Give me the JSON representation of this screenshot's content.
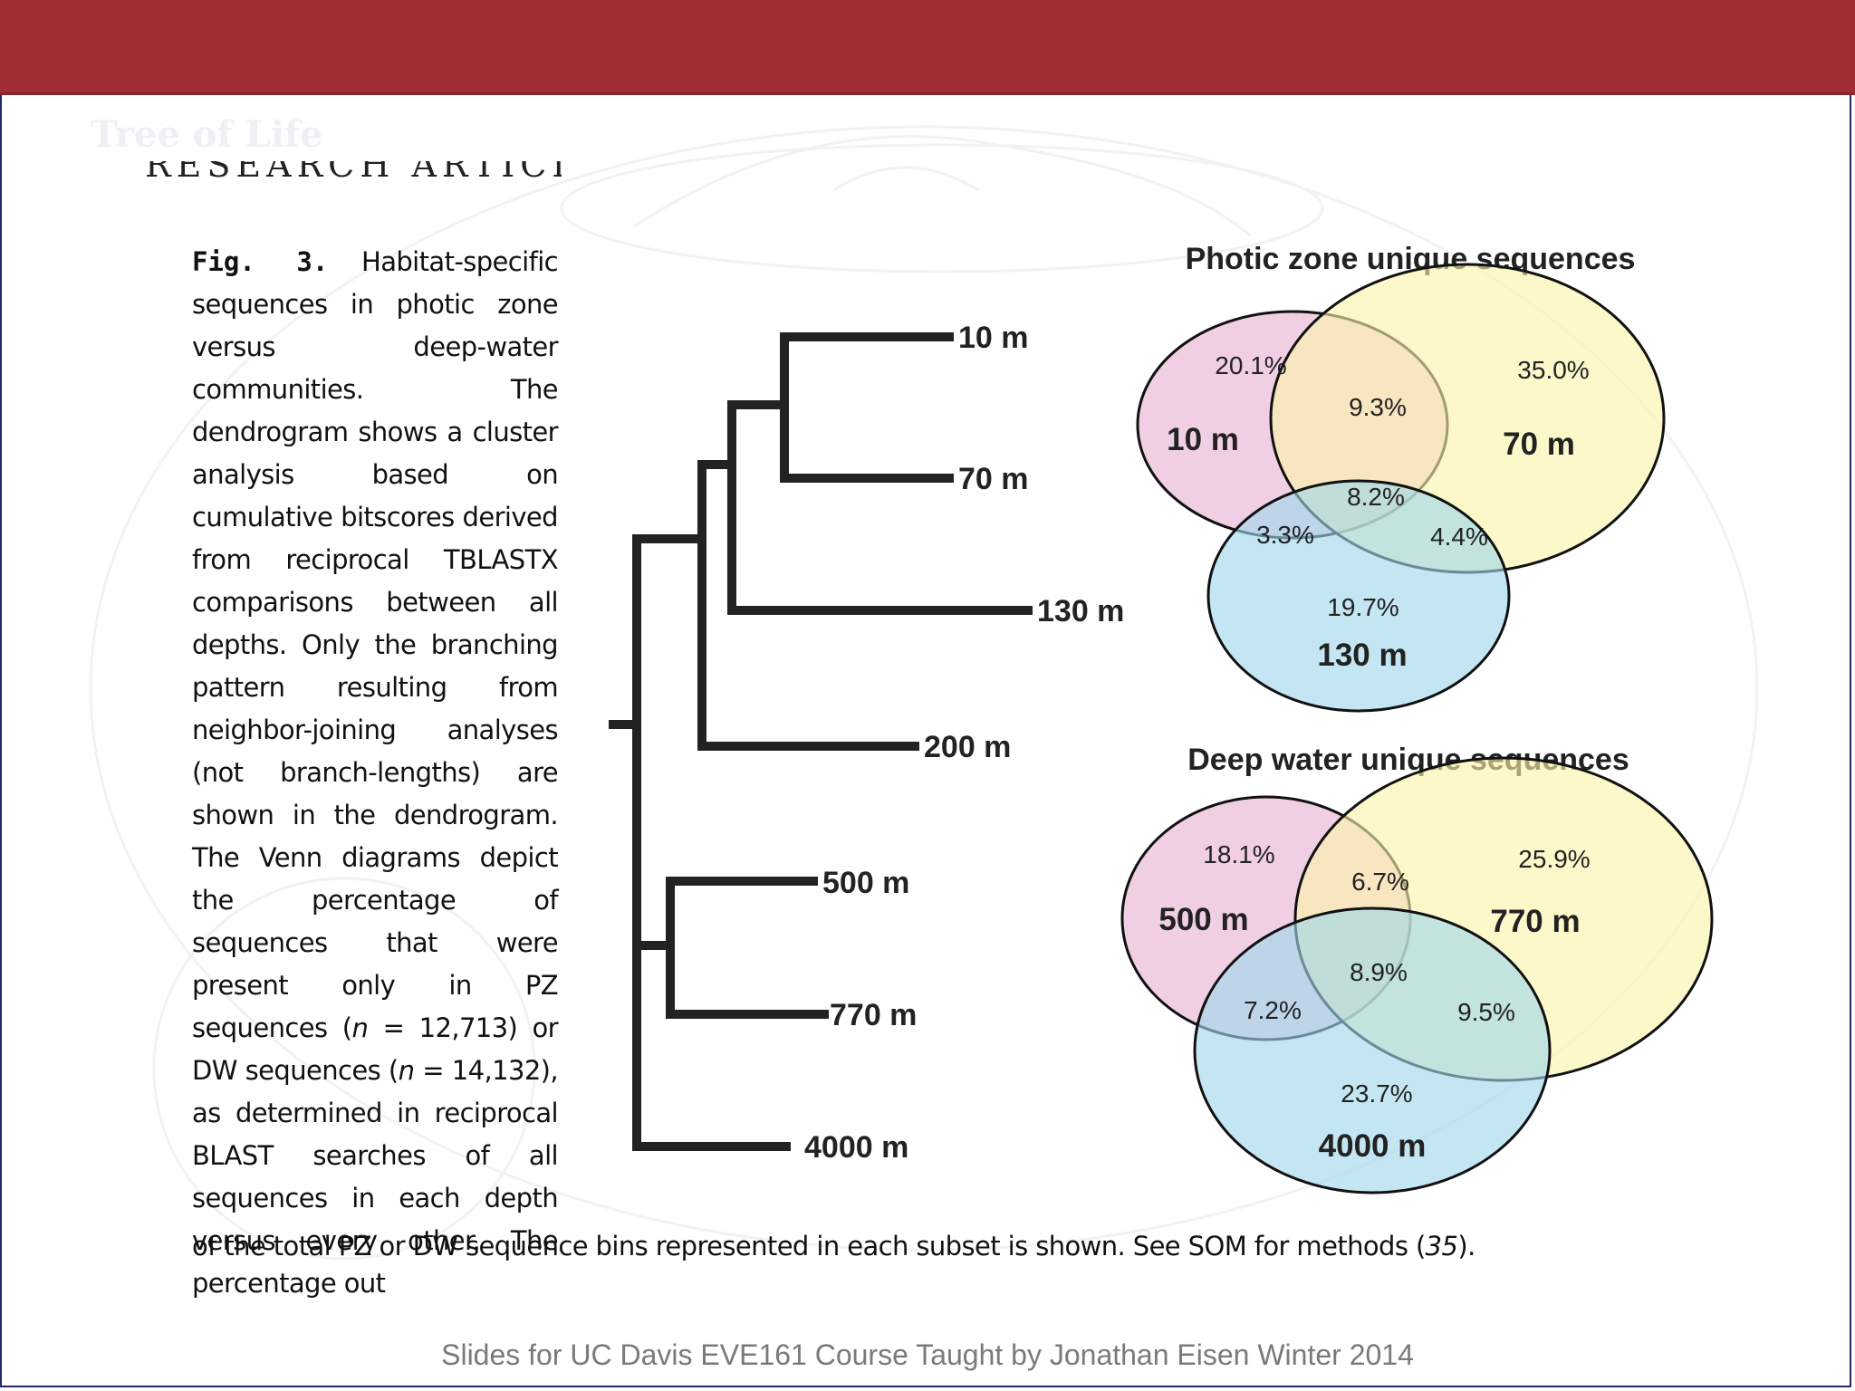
{
  "slide": {
    "header_color": "#a02d34",
    "watermark_title": "Tree of Life",
    "footer": "Slides for UC Davis EVE161 Course Taught by Jonathan Eisen Winter 2014"
  },
  "article": {
    "section_header": "RESEARCH ARTICLES"
  },
  "caption": {
    "fig_label": "Fig. 3.",
    "body_lines": [
      "Habitat-specific sequences in photic zone versus deep-water communities. The dendrogram shows a cluster analysis based on cumulative bitscores derived from reciprocal TBLASTX comparisons between all depths. Only the branching pattern resulting from neighbor-joining analyses (not branch-lengths) are shown in the dendrogram. The Venn diagrams depict the percentage of sequences that were present only in PZ sequences (",
      "n",
      " = 12,713) or DW sequences (",
      "n",
      " = 14,132), as determined in reciprocal BLAST searches of all sequences in each depth versus every other. The percentage out"
    ],
    "tail_before": "of the total PZ or DW sequence bins represented in each subset is shown. See SOM for methods (",
    "tail_ref": "35",
    "tail_after": ")."
  },
  "dendrogram": {
    "leaves": [
      "10 m",
      "70 m",
      "130 m",
      "200 m",
      "500 m",
      "770 m",
      "4000 m"
    ]
  },
  "venn_photic": {
    "title": "Photic zone unique sequences",
    "circles": [
      {
        "label": "10 m",
        "color": "#ecc3de"
      },
      {
        "label": "70 m",
        "color": "#fbf6c2"
      },
      {
        "label": "130 m",
        "color": "#b6e1ee"
      }
    ],
    "regions": {
      "only_a": "20.1%",
      "only_b": "35.0%",
      "only_c": "19.7%",
      "ab": "9.3%",
      "abc": "8.2%",
      "ac": "3.3%",
      "bc": "4.4%"
    }
  },
  "venn_deep": {
    "title": "Deep water unique sequences",
    "circles": [
      {
        "label": "500 m",
        "color": "#ecc3de"
      },
      {
        "label": "770 m",
        "color": "#fbf6c2"
      },
      {
        "label": "4000 m",
        "color": "#b6e1ee"
      }
    ],
    "regions": {
      "only_a": "18.1%",
      "only_b": "25.9%",
      "only_c": "23.7%",
      "ab": "6.7%",
      "abc": "8.9%",
      "ac": "7.2%",
      "bc": "9.5%"
    }
  }
}
